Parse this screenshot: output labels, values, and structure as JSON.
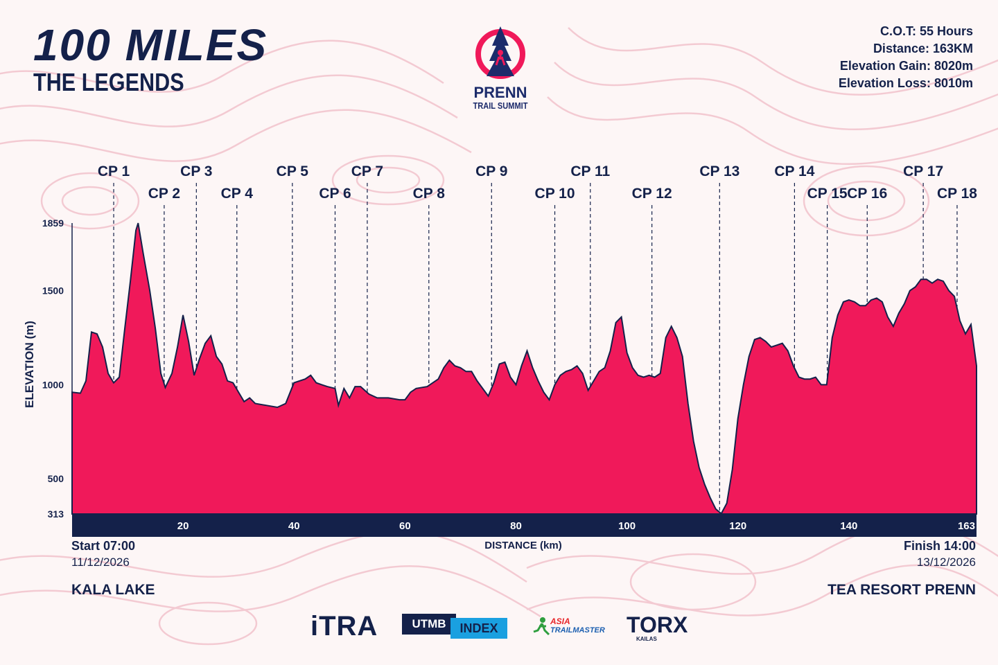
{
  "header": {
    "title": "100 MILES",
    "subtitle": "THE LEGENDS"
  },
  "logo": {
    "line1": "PRENN",
    "line2": "TRAIL SUMMIT"
  },
  "stats": {
    "cot": "C.O.T: 55 Hours",
    "distance": "Distance: 163KM",
    "gain": "Elevation Gain: 8020m",
    "loss": "Elevation Loss: 8010m"
  },
  "footer": {
    "start_time": "Start 07:00",
    "start_date": "11/12/2026",
    "start_place": "KALA LAKE",
    "finish_time": "Finish 14:00",
    "finish_date": "13/12/2026",
    "finish_place": "TEA RESORT PRENN"
  },
  "sponsors": {
    "itra": "iTRA",
    "utmb_a": "UTMB",
    "utmb_b": "INDEX",
    "asia_a": "ASIA",
    "asia_b": "TRAILMASTER",
    "torx": "TORX",
    "torx_sub": "KAILAS"
  },
  "colors": {
    "fill": "#f0195a",
    "navy": "#14214a",
    "contour": "#f3c6cf"
  },
  "chart_data": {
    "type": "area",
    "title": "",
    "xlabel": "DISTANCE (km)",
    "ylabel": "ELEVATION (m)",
    "xlim": [
      0,
      163
    ],
    "ylim": [
      313,
      1859
    ],
    "x_ticks": [
      20,
      40,
      60,
      80,
      100,
      120,
      140,
      163
    ],
    "y_ticks": [
      1859,
      1500,
      1000,
      500,
      313
    ],
    "checkpoints": [
      {
        "label": "CP 1",
        "km": 7.5
      },
      {
        "label": "CP 2",
        "km": 16.6
      },
      {
        "label": "CP 3",
        "km": 22.4
      },
      {
        "label": "CP 4",
        "km": 29.7
      },
      {
        "label": "CP 5",
        "km": 39.7
      },
      {
        "label": "CP 6",
        "km": 47.4
      },
      {
        "label": "CP 7",
        "km": 53.2
      },
      {
        "label": "CP 8",
        "km": 64.3
      },
      {
        "label": "CP 9",
        "km": 75.6
      },
      {
        "label": "CP 10",
        "km": 87.0
      },
      {
        "label": "CP 11",
        "km": 93.4
      },
      {
        "label": "CP 12",
        "km": 104.5
      },
      {
        "label": "CP 13",
        "km": 116.7
      },
      {
        "label": "CP 14",
        "km": 130.2
      },
      {
        "label": "CP 15",
        "km": 136.1
      },
      {
        "label": "CP 16",
        "km": 143.3
      },
      {
        "label": "CP 17",
        "km": 153.4
      },
      {
        "label": "CP 18",
        "km": 159.5
      }
    ],
    "profile": [
      [
        0,
        960
      ],
      [
        1.5,
        955
      ],
      [
        2.5,
        1020
      ],
      [
        3.5,
        1280
      ],
      [
        4.5,
        1270
      ],
      [
        5.5,
        1200
      ],
      [
        6.5,
        1060
      ],
      [
        7.5,
        1010
      ],
      [
        8.5,
        1040
      ],
      [
        9.5,
        1300
      ],
      [
        10.5,
        1550
      ],
      [
        11.5,
        1820
      ],
      [
        11.9,
        1859
      ],
      [
        12.8,
        1700
      ],
      [
        14,
        1500
      ],
      [
        15,
        1300
      ],
      [
        16,
        1060
      ],
      [
        16.8,
        985
      ],
      [
        18,
        1060
      ],
      [
        19,
        1200
      ],
      [
        20,
        1370
      ],
      [
        21,
        1230
      ],
      [
        22,
        1050
      ],
      [
        23,
        1140
      ],
      [
        24,
        1220
      ],
      [
        25,
        1260
      ],
      [
        26,
        1150
      ],
      [
        27,
        1110
      ],
      [
        28,
        1020
      ],
      [
        29,
        1010
      ],
      [
        30,
        960
      ],
      [
        31,
        910
      ],
      [
        32,
        930
      ],
      [
        33,
        900
      ],
      [
        35,
        890
      ],
      [
        37,
        880
      ],
      [
        38.5,
        900
      ],
      [
        40,
        1010
      ],
      [
        42,
        1030
      ],
      [
        43,
        1050
      ],
      [
        44,
        1010
      ],
      [
        45,
        1000
      ],
      [
        46,
        990
      ],
      [
        47.4,
        980
      ],
      [
        48,
        890
      ],
      [
        49,
        980
      ],
      [
        50,
        930
      ],
      [
        51,
        990
      ],
      [
        52,
        990
      ],
      [
        53.5,
        950
      ],
      [
        55,
        930
      ],
      [
        57,
        930
      ],
      [
        59,
        920
      ],
      [
        60,
        920
      ],
      [
        61,
        960
      ],
      [
        62,
        980
      ],
      [
        64,
        990
      ],
      [
        66,
        1030
      ],
      [
        67,
        1090
      ],
      [
        68,
        1130
      ],
      [
        69,
        1100
      ],
      [
        70,
        1090
      ],
      [
        71,
        1070
      ],
      [
        72,
        1070
      ],
      [
        73,
        1020
      ],
      [
        75,
        940
      ],
      [
        76,
        1010
      ],
      [
        77,
        1110
      ],
      [
        78,
        1120
      ],
      [
        79,
        1040
      ],
      [
        80,
        1000
      ],
      [
        81,
        1100
      ],
      [
        82,
        1180
      ],
      [
        83,
        1090
      ],
      [
        84,
        1020
      ],
      [
        85,
        960
      ],
      [
        86,
        920
      ],
      [
        87,
        1000
      ],
      [
        88,
        1050
      ],
      [
        89,
        1070
      ],
      [
        90,
        1080
      ],
      [
        91,
        1100
      ],
      [
        92,
        1060
      ],
      [
        93,
        970
      ],
      [
        94,
        1020
      ],
      [
        95,
        1070
      ],
      [
        96,
        1090
      ],
      [
        97,
        1180
      ],
      [
        98,
        1330
      ],
      [
        99,
        1360
      ],
      [
        100,
        1170
      ],
      [
        101,
        1090
      ],
      [
        102,
        1050
      ],
      [
        103,
        1040
      ],
      [
        104,
        1050
      ],
      [
        105,
        1040
      ],
      [
        106,
        1060
      ],
      [
        107,
        1250
      ],
      [
        108,
        1310
      ],
      [
        109,
        1250
      ],
      [
        110,
        1150
      ],
      [
        111,
        900
      ],
      [
        112,
        700
      ],
      [
        113,
        560
      ],
      [
        114,
        470
      ],
      [
        115,
        400
      ],
      [
        116,
        340
      ],
      [
        117,
        315
      ],
      [
        118,
        370
      ],
      [
        119,
        550
      ],
      [
        120,
        820
      ],
      [
        121,
        1000
      ],
      [
        122,
        1150
      ],
      [
        123,
        1240
      ],
      [
        124,
        1250
      ],
      [
        125,
        1230
      ],
      [
        126,
        1200
      ],
      [
        127,
        1210
      ],
      [
        128,
        1220
      ],
      [
        129,
        1180
      ],
      [
        130,
        1100
      ],
      [
        131,
        1040
      ],
      [
        132,
        1030
      ],
      [
        133,
        1030
      ],
      [
        134,
        1040
      ],
      [
        135,
        1000
      ],
      [
        136,
        1000
      ],
      [
        137,
        1250
      ],
      [
        138,
        1370
      ],
      [
        139,
        1440
      ],
      [
        140,
        1450
      ],
      [
        141,
        1440
      ],
      [
        142,
        1420
      ],
      [
        143,
        1420
      ],
      [
        144,
        1450
      ],
      [
        145,
        1460
      ],
      [
        146,
        1440
      ],
      [
        147,
        1360
      ],
      [
        148,
        1310
      ],
      [
        149,
        1380
      ],
      [
        150,
        1430
      ],
      [
        151,
        1500
      ],
      [
        152,
        1520
      ],
      [
        153,
        1560
      ],
      [
        154,
        1560
      ],
      [
        155,
        1540
      ],
      [
        156,
        1560
      ],
      [
        157,
        1550
      ],
      [
        158,
        1500
      ],
      [
        159,
        1470
      ],
      [
        160,
        1340
      ],
      [
        161,
        1270
      ],
      [
        162,
        1320
      ],
      [
        163,
        1100
      ]
    ]
  }
}
